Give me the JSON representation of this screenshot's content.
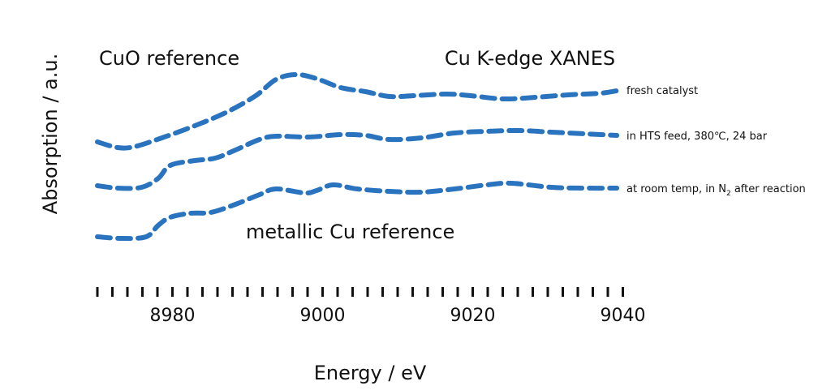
{
  "chart_data": {
    "type": "line",
    "title": "Cu K-edge XANES",
    "xlabel": "Energy / eV",
    "ylabel": "Absorption / a.u.",
    "xlim": [
      8970,
      9040
    ],
    "x_ticks": [
      8980,
      9000,
      9020,
      9040
    ],
    "minor_tick_step": 2,
    "grid": false,
    "line_style": "dashed",
    "color": "#2a74bf",
    "annotations": {
      "top_left": "CuO reference",
      "bottom": "metallic Cu reference"
    },
    "series": [
      {
        "name": "fresh catalyst",
        "label_main": "fresh catalyst",
        "label_sub": "",
        "x": [
          8970,
          8972.7,
          8974.9,
          8978.6,
          8983,
          8987.3,
          8991.1,
          8993.8,
          8996.5,
          8999.2,
          9002.4,
          9005.7,
          9008.9,
          9012.2,
          9016.5,
          9019.7,
          9024.1,
          9028.4,
          9032.7,
          9037,
          9039.2
        ],
        "y": [
          1.55,
          1.48,
          1.49,
          1.6,
          1.75,
          1.92,
          2.12,
          2.32,
          2.38,
          2.33,
          2.22,
          2.17,
          2.11,
          2.12,
          2.14,
          2.12,
          2.08,
          2.1,
          2.13,
          2.15,
          2.18
        ]
      },
      {
        "name": "in HTS feed, 380°C, 24 bar",
        "label_main": "in HTS feed, 380℃, 24 bar",
        "label_sub": "",
        "x": [
          8970,
          8972.7,
          8975.9,
          8978.1,
          8979.7,
          8983,
          8985.7,
          8988.4,
          8991.6,
          8993.8,
          8998.1,
          9002.4,
          9005.7,
          9008.9,
          9013.2,
          9017.6,
          9021.9,
          9026.2,
          9030.5,
          9034.9,
          9039.2
        ],
        "y": [
          1.01,
          0.98,
          0.99,
          1.1,
          1.26,
          1.32,
          1.35,
          1.45,
          1.58,
          1.62,
          1.61,
          1.64,
          1.63,
          1.58,
          1.6,
          1.66,
          1.68,
          1.69,
          1.67,
          1.65,
          1.63
        ]
      },
      {
        "name": "at room temp, in N2 after reaction",
        "label_main": "at room temp, in N",
        "label_sub": "2",
        "label_tail": " after reaction",
        "x": [
          8970,
          8973.2,
          8976.5,
          8978.1,
          8979.7,
          8982.4,
          8985.1,
          8988.4,
          8991.6,
          8993.8,
          8997.6,
          8999.2,
          9001.4,
          9004.6,
          9008.9,
          9013.2,
          9017.6,
          9021.9,
          9025.1,
          9030.5,
          9034.9,
          9039.2
        ],
        "y": [
          0.38,
          0.36,
          0.38,
          0.52,
          0.62,
          0.67,
          0.68,
          0.78,
          0.9,
          0.97,
          0.92,
          0.95,
          1.02,
          0.97,
          0.94,
          0.93,
          0.97,
          1.02,
          1.04,
          0.99,
          0.98,
          0.98
        ]
      }
    ]
  }
}
